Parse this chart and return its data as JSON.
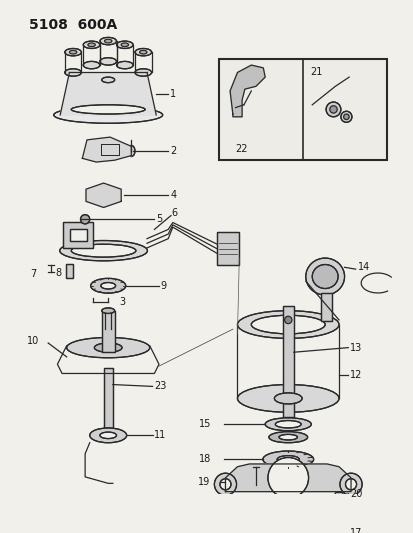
{
  "title": "5108  600A",
  "bg": "#f2f0eb",
  "lc": "#2a2a2a",
  "tc": "#1a1a1a",
  "figsize": [
    4.14,
    5.33
  ],
  "dpi": 100
}
